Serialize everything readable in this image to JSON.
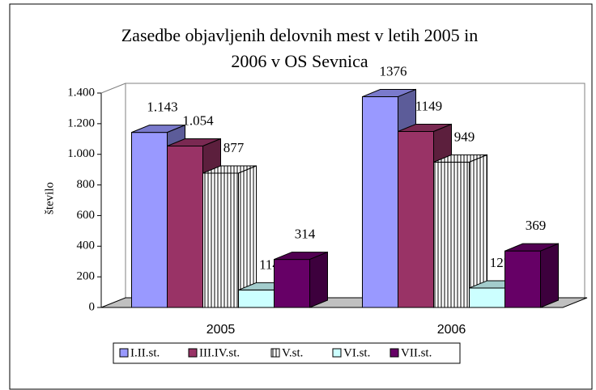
{
  "chart_data": {
    "type": "bar3d",
    "title": [
      "Zasedbe objavljenih delovnih mest v letih 2005 in",
      "2006 v OS Sevnica"
    ],
    "y_label": "število",
    "categories": [
      "2005",
      "2006"
    ],
    "series": [
      {
        "name": "I.II.st.",
        "color": "#9999ff",
        "values": [
          1143,
          1376
        ],
        "value_labels": [
          "1.143",
          "1376"
        ]
      },
      {
        "name": "III.IV.st.",
        "color": "#993366",
        "values": [
          1054,
          1149
        ],
        "value_labels": [
          "1.054",
          "1149"
        ]
      },
      {
        "name": "V.st.",
        "color": "#ffffff",
        "pattern": "vertical-lines",
        "values": [
          877,
          949
        ],
        "value_labels": [
          "877",
          "949"
        ]
      },
      {
        "name": "VI.st.",
        "color": "#ccffff",
        "values": [
          114,
          127
        ],
        "value_labels": [
          "114",
          "127"
        ]
      },
      {
        "name": "VII.st.",
        "color": "#660066",
        "values": [
          314,
          369
        ],
        "value_labels": [
          "314",
          "369"
        ]
      }
    ],
    "ylim": [
      0,
      1400
    ],
    "yticks": [
      0,
      200,
      400,
      600,
      800,
      {
        "value": 1000,
        "label": "1.000"
      },
      {
        "value": 1200,
        "label": "1.200"
      },
      {
        "value": 1400,
        "label": "1.400"
      }
    ],
    "legend": "bottom"
  }
}
